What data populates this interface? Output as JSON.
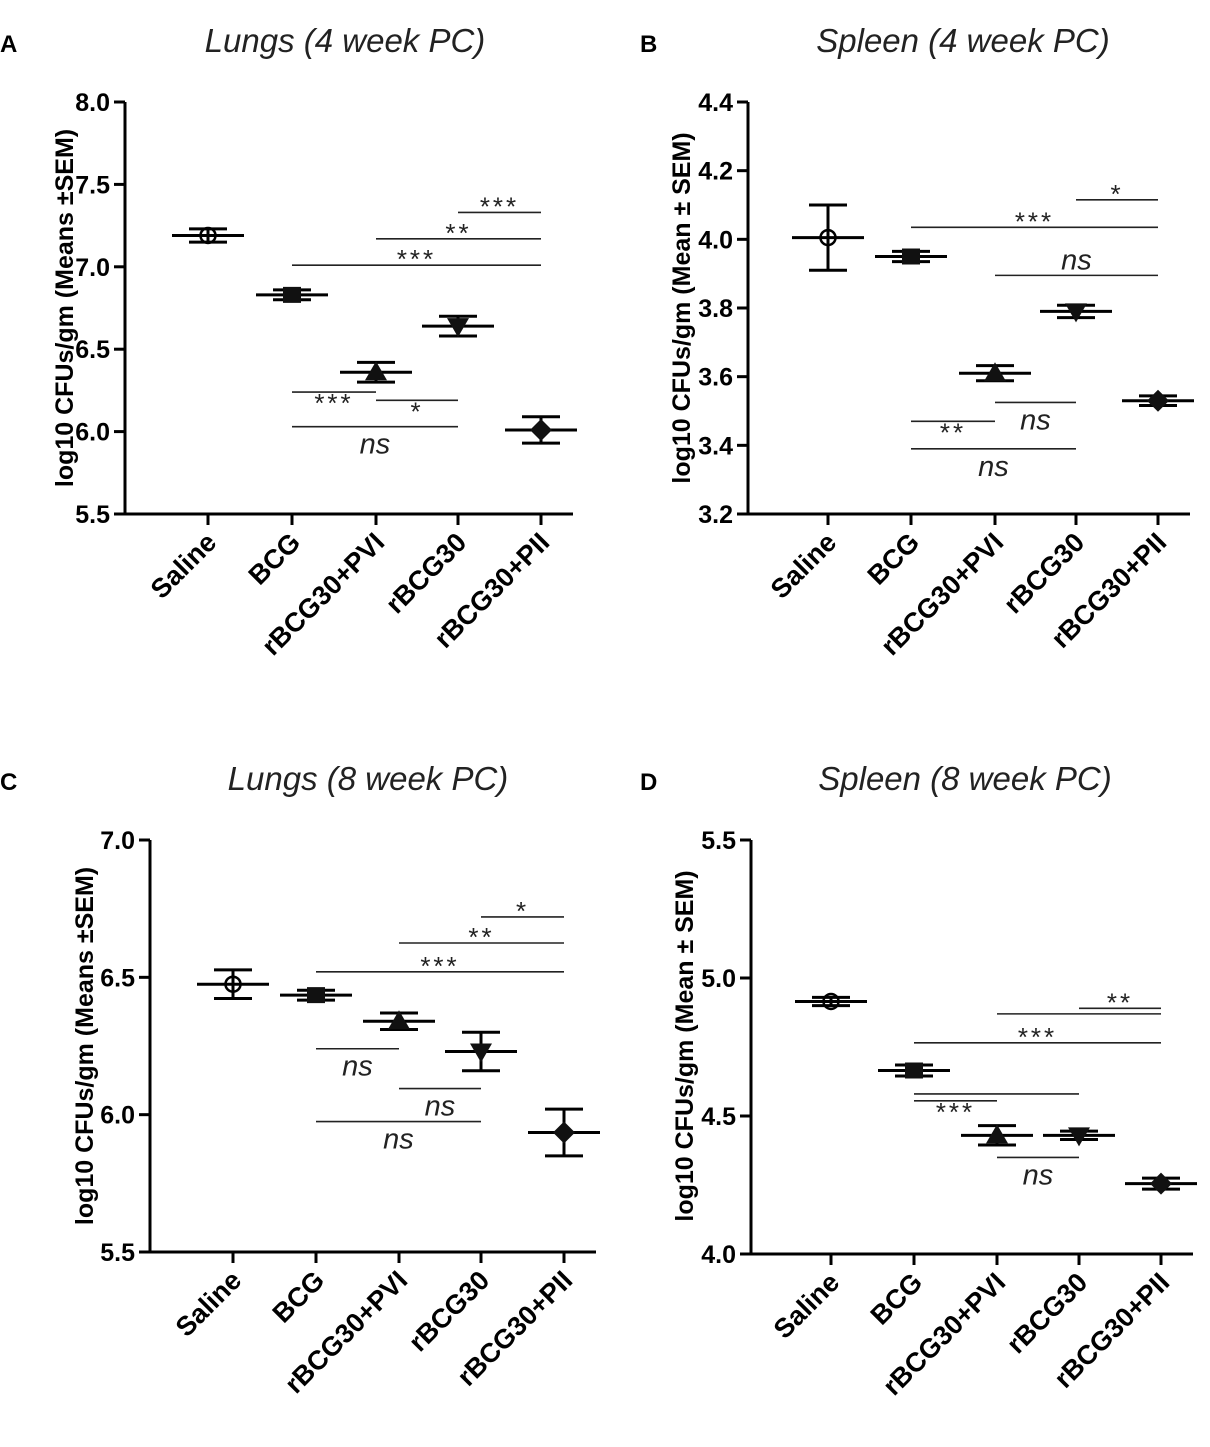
{
  "chart_data": [
    {
      "letter": "A",
      "type": "scatter",
      "title": "Lungs (4 week PC)",
      "ylabel": "log10 CFUs/gm (Means ±SEM)",
      "categories": [
        "Saline",
        "BCG",
        "rBCG30+PVI",
        "rBCG30",
        "rBCG30+PII"
      ],
      "markers": [
        "circle",
        "square",
        "triangle-up",
        "triangle-down",
        "diamond"
      ],
      "means": [
        7.19,
        6.83,
        6.36,
        6.64,
        6.01
      ],
      "sem": [
        0.04,
        0.03,
        0.06,
        0.06,
        0.08
      ],
      "ylim": [
        5.5,
        8.0
      ],
      "yticks": [
        "5.5",
        "6.0",
        "6.5",
        "7.0",
        "7.5",
        "8.0"
      ],
      "comparisons": [
        {
          "from": 3,
          "to": 4,
          "label": "***",
          "y": 7.33,
          "pos": "above"
        },
        {
          "from": 2,
          "to": 4,
          "label": "**",
          "y": 7.17,
          "pos": "above"
        },
        {
          "from": 1,
          "to": 4,
          "label": "***",
          "y": 7.01,
          "pos": "above"
        },
        {
          "from": 1,
          "to": 2,
          "label": "***",
          "y": 6.24,
          "pos": "below"
        },
        {
          "from": 2,
          "to": 3,
          "label": "*",
          "y": 6.19,
          "pos": "below"
        },
        {
          "from": 1,
          "to": 3,
          "label": "ns",
          "y": 6.03,
          "pos": "below"
        }
      ]
    },
    {
      "letter": "B",
      "type": "scatter",
      "title": "Spleen (4 week PC)",
      "ylabel": "log10 CFUs/gm (Mean ± SEM)",
      "categories": [
        "Saline",
        "BCG",
        "rBCG30+PVI",
        "rBCG30",
        "rBCG30+PII"
      ],
      "markers": [
        "circle",
        "square",
        "triangle-up",
        "triangle-down",
        "diamond"
      ],
      "means": [
        4.005,
        3.95,
        3.61,
        3.79,
        3.53
      ],
      "sem": [
        0.095,
        0.015,
        0.022,
        0.018,
        0.014
      ],
      "ylim": [
        3.2,
        4.4
      ],
      "yticks": [
        "3.2",
        "3.4",
        "3.6",
        "3.8",
        "4.0",
        "4.2",
        "4.4"
      ],
      "comparisons": [
        {
          "from": 3,
          "to": 4,
          "label": "*",
          "y": 4.115,
          "pos": "above"
        },
        {
          "from": 1,
          "to": 4,
          "label": "***",
          "y": 4.035,
          "pos": "above"
        },
        {
          "from": 2,
          "to": 4,
          "label": "ns",
          "y": 3.895,
          "pos": "above"
        },
        {
          "from": 1,
          "to": 2,
          "label": "**",
          "y": 3.47,
          "pos": "below"
        },
        {
          "from": 2,
          "to": 3,
          "label": "ns",
          "y": 3.525,
          "pos": "below"
        },
        {
          "from": 1,
          "to": 3,
          "label": "ns",
          "y": 3.39,
          "pos": "below"
        }
      ]
    },
    {
      "letter": "C",
      "type": "scatter",
      "title": "Lungs (8 week PC)",
      "ylabel": "log10 CFUs/gm (Means ±SEM)",
      "categories": [
        "Saline",
        "BCG",
        "rBCG30+PVI",
        "rBCG30",
        "rBCG30+PII"
      ],
      "markers": [
        "circle",
        "square",
        "triangle-up",
        "triangle-down",
        "diamond"
      ],
      "means": [
        6.475,
        6.435,
        6.34,
        6.23,
        5.935
      ],
      "sem": [
        0.052,
        0.018,
        0.03,
        0.07,
        0.085
      ],
      "ylim": [
        5.5,
        7.0
      ],
      "yticks": [
        "5.5",
        "6.0",
        "6.5",
        "7.0"
      ],
      "comparisons": [
        {
          "from": 3,
          "to": 4,
          "label": "*",
          "y": 6.72,
          "pos": "above"
        },
        {
          "from": 2,
          "to": 4,
          "label": "**",
          "y": 6.625,
          "pos": "above"
        },
        {
          "from": 1,
          "to": 4,
          "label": "***",
          "y": 6.52,
          "pos": "above"
        },
        {
          "from": 1,
          "to": 2,
          "label": "ns",
          "y": 6.24,
          "pos": "below"
        },
        {
          "from": 2,
          "to": 3,
          "label": "ns",
          "y": 6.095,
          "pos": "below"
        },
        {
          "from": 1,
          "to": 3,
          "label": "ns",
          "y": 5.975,
          "pos": "below"
        }
      ]
    },
    {
      "letter": "D",
      "type": "scatter",
      "title": "Spleen (8 week PC)",
      "ylabel": "log10 CFUs/gm (Mean ± SEM)",
      "categories": [
        "Saline",
        "BCG",
        "rBCG30+PVI",
        "rBCG30",
        "rBCG30+PII"
      ],
      "markers": [
        "circle",
        "square",
        "triangle-up",
        "triangle-down",
        "diamond"
      ],
      "means": [
        4.915,
        4.665,
        4.43,
        4.43,
        4.255
      ],
      "sem": [
        0.015,
        0.02,
        0.035,
        0.015,
        0.02
      ],
      "ylim": [
        4.0,
        5.5
      ],
      "yticks": [
        "4.0",
        "4.5",
        "5.0",
        "5.5"
      ],
      "comparisons": [
        {
          "from": 3,
          "to": 4,
          "label": "**",
          "y": 4.89,
          "pos": "above"
        },
        {
          "from": 2,
          "to": 4,
          "label": "",
          "y": 4.87,
          "pos": "above"
        },
        {
          "from": 1,
          "to": 4,
          "label": "***",
          "y": 4.765,
          "pos": "above"
        },
        {
          "from": 1,
          "to": 3,
          "label": "",
          "y": 4.58,
          "pos": "above"
        },
        {
          "from": 1,
          "to": 2,
          "label": "***",
          "y": 4.555,
          "pos": "below"
        },
        {
          "from": 2,
          "to": 3,
          "label": "ns",
          "y": 4.35,
          "pos": "below"
        }
      ]
    }
  ]
}
